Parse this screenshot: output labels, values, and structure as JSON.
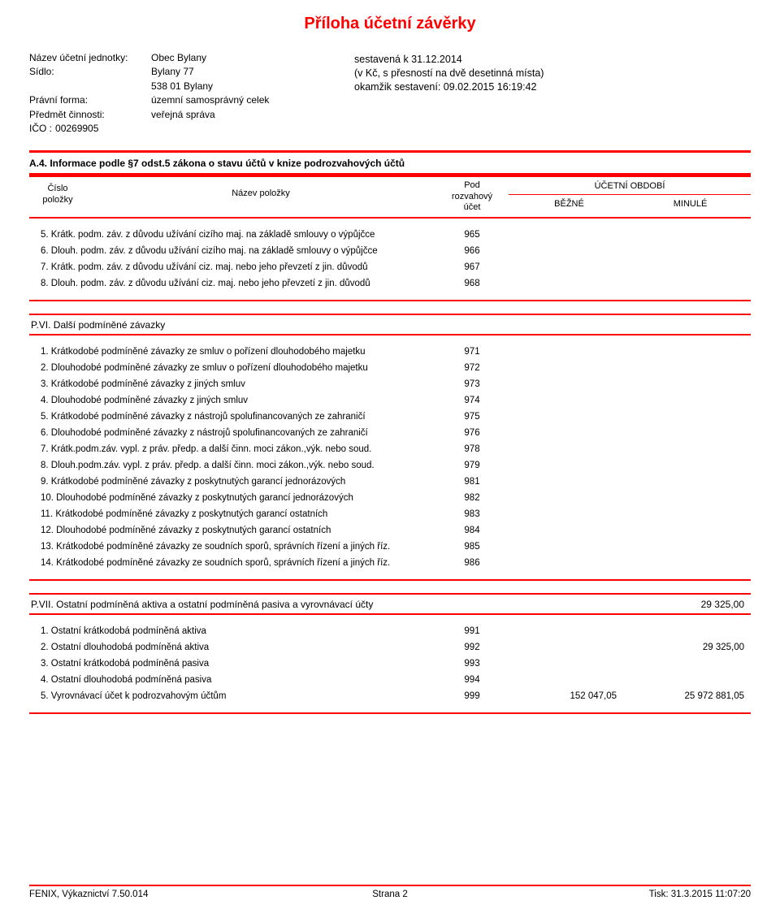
{
  "colors": {
    "accent": "#ff0000",
    "text": "#000000",
    "background": "#ffffff"
  },
  "title": "Příloha účetní závěrky",
  "header": {
    "left": {
      "entity_label": "Název účetní jednotky:",
      "entity_value": "Obec Bylany",
      "seat_label": "Sídlo:",
      "seat_line1": "Bylany 77",
      "seat_line2": "538 01 Bylany",
      "form_label": "Právní forma:",
      "form_value": "územní samosprávný celek",
      "activity_label": "Předmět činnosti:",
      "activity_value": "veřejná správa",
      "ico_label": "IČO :",
      "ico_value": "00269905"
    },
    "right": {
      "line1": "sestavená k 31.12.2014",
      "line2": "(v Kč, s přesností na dvě desetinná místa)",
      "line3": "okamžik sestavení: 09.02.2015 16:19:42"
    }
  },
  "section_a4": {
    "heading": "A.4. Informace podle §7 odst.5 zákona o stavu účtů v knize podrozvahových účtů",
    "col_left_l1": "Číslo",
    "col_left_l2": "položky",
    "col_name": "Název položky",
    "col_mid_l1": "Pod",
    "col_mid_l2": "rozvahový",
    "col_mid_l3": "účet",
    "col_period": "ÚČETNÍ OBDOBÍ",
    "col_b": "BĚŽNÉ",
    "col_m": "MINULÉ",
    "rows": [
      {
        "label": "5. Krátk. podm. záv. z důvodu užívání cizího maj. na základě smlouvy o výpůjčce",
        "acct": "965"
      },
      {
        "label": "6. Dlouh. podm. záv. z důvodu užívání cizího maj. na základě smlouvy o výpůjčce",
        "acct": "966"
      },
      {
        "label": "7. Krátk. podm. záv. z důvodu užívání ciz. maj. nebo jeho převzetí z jin. důvodů",
        "acct": "967"
      },
      {
        "label": "8. Dlouh. podm. záv. z důvodu užívání ciz. maj. nebo jeho převzetí z jin. důvodů",
        "acct": "968"
      }
    ]
  },
  "section_pvi": {
    "heading": "P.VI.  Další podmíněné závazky",
    "rows": [
      {
        "label": "1. Krátkodobé podmíněné závazky ze smluv o pořízení dlouhodobého majetku",
        "acct": "971"
      },
      {
        "label": "2. Dlouhodobé podmíněné závazky ze smluv o pořízení dlouhodobého majetku",
        "acct": "972"
      },
      {
        "label": "3. Krátkodobé podmíněné závazky z jiných smluv",
        "acct": "973"
      },
      {
        "label": "4. Dlouhodobé podmíněné závazky z jiných smluv",
        "acct": "974"
      },
      {
        "label": "5. Krátkodobé podmíněné závazky z nástrojů spolufinancovaných ze zahraničí",
        "acct": "975"
      },
      {
        "label": "6. Dlouhodobé podmíněné závazky z nástrojů spolufinancovaných ze zahraničí",
        "acct": "976"
      },
      {
        "label": "7. Krátk.podm.záv. vypl. z práv. předp. a další činn. moci zákon.,výk. nebo soud.",
        "acct": "978"
      },
      {
        "label": "8. Dlouh.podm.záv. vypl. z práv. předp. a další činn. moci zákon.,výk. nebo soud.",
        "acct": "979"
      },
      {
        "label": "9. Krátkodobé podmíněné závazky z poskytnutých garancí jednorázových",
        "acct": "981"
      },
      {
        "label": "10. Dlouhodobé podmíněné závazky z poskytnutých garancí jednorázových",
        "acct": "982"
      },
      {
        "label": "11. Krátkodobé podmíněné závazky z poskytnutých garancí ostatních",
        "acct": "983"
      },
      {
        "label": "12. Dlouhodobé podmíněné závazky z poskytnutých garancí ostatních",
        "acct": "984"
      },
      {
        "label": "13. Krátkodobé podmíněné závazky ze soudních sporů, správních řízení a jiných říz.",
        "acct": "985"
      },
      {
        "label": "14. Krátkodobé podmíněné závazky ze soudních sporů, správních řízení a jiných říz.",
        "acct": "986"
      }
    ]
  },
  "section_pvii": {
    "heading": "P.VII.  Ostatní podmíněná aktiva a ostatní podmíněná pasiva a vyrovnávací účty",
    "heading_v2": "29 325,00",
    "rows": [
      {
        "label": "1. Ostatní krátkodobá podmíněná aktiva",
        "acct": "991"
      },
      {
        "label": "2. Ostatní dlouhodobá podmíněná aktiva",
        "acct": "992",
        "v2": "29 325,00"
      },
      {
        "label": "3. Ostatní krátkodobá podmíněná pasiva",
        "acct": "993"
      },
      {
        "label": "4. Ostatní dlouhodobá podmíněná pasiva",
        "acct": "994"
      },
      {
        "label": "5. Vyrovnávací účet k podrozvahovým účtům",
        "acct": "999",
        "v1": "152 047,05",
        "v2": "25 972 881,05"
      }
    ]
  },
  "footer": {
    "left": "FENIX, Výkaznictví 7.50.014",
    "mid": "Strana 2",
    "right": "Tisk: 31.3.2015 11:07:20"
  }
}
